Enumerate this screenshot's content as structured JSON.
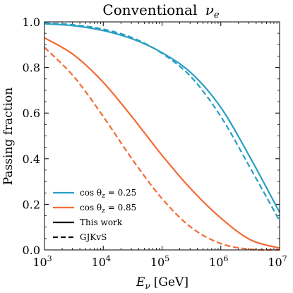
{
  "chart_data": {
    "type": "line",
    "title_main": "Conventional",
    "title_sym": "ν",
    "title_sub": "e",
    "xlabel_sym": "E",
    "xlabel_sub": "ν",
    "xlabel_unit": "[GeV]",
    "ylabel": "Passing fraction",
    "x_scale": "log",
    "xlim": [
      1000,
      10000000
    ],
    "ylim": [
      0.0,
      1.0
    ],
    "x_ticks": [
      {
        "value": 1000,
        "base": "10",
        "exp": "3"
      },
      {
        "value": 10000,
        "base": "10",
        "exp": "4"
      },
      {
        "value": 100000,
        "base": "10",
        "exp": "5"
      },
      {
        "value": 1000000,
        "base": "10",
        "exp": "6"
      },
      {
        "value": 10000000,
        "base": "10",
        "exp": "7"
      }
    ],
    "y_ticks": [
      {
        "value": 0.0,
        "label": "0.0"
      },
      {
        "value": 0.2,
        "label": "0.2"
      },
      {
        "value": 0.4,
        "label": "0.4"
      },
      {
        "value": 0.6,
        "label": "0.6"
      },
      {
        "value": 0.8,
        "label": "0.8"
      },
      {
        "value": 1.0,
        "label": "1.0"
      }
    ],
    "colors": {
      "cos025": "#2a9fc3",
      "cos085": "#f26b35"
    },
    "series": [
      {
        "key": "cos025_thiswork",
        "color": "#2a9fc3",
        "dash": "solid",
        "points": [
          [
            1000,
            0.992
          ],
          [
            3162,
            0.983
          ],
          [
            10000,
            0.962
          ],
          [
            31623,
            0.925
          ],
          [
            100000,
            0.865
          ],
          [
            316228,
            0.775
          ],
          [
            1000000,
            0.625
          ],
          [
            3162278,
            0.405
          ],
          [
            10000000,
            0.165
          ]
        ]
      },
      {
        "key": "cos025_gjkvs",
        "color": "#2a9fc3",
        "dash": "dashed",
        "points": [
          [
            1000,
            0.995
          ],
          [
            3162,
            0.987
          ],
          [
            10000,
            0.968
          ],
          [
            31623,
            0.93
          ],
          [
            100000,
            0.862
          ],
          [
            316228,
            0.757
          ],
          [
            1000000,
            0.585
          ],
          [
            3162278,
            0.36
          ],
          [
            10000000,
            0.128
          ]
        ]
      },
      {
        "key": "cos085_thiswork",
        "color": "#f26b35",
        "dash": "solid",
        "points": [
          [
            1000,
            0.93
          ],
          [
            3162,
            0.855
          ],
          [
            10000,
            0.735
          ],
          [
            31623,
            0.58
          ],
          [
            100000,
            0.415
          ],
          [
            316228,
            0.265
          ],
          [
            1000000,
            0.14
          ],
          [
            3162278,
            0.045
          ],
          [
            10000000,
            0.008
          ]
        ]
      },
      {
        "key": "cos085_gjkvs",
        "color": "#f26b35",
        "dash": "dashed",
        "points": [
          [
            1000,
            0.888
          ],
          [
            3162,
            0.76
          ],
          [
            10000,
            0.585
          ],
          [
            31623,
            0.395
          ],
          [
            100000,
            0.225
          ],
          [
            316228,
            0.098
          ],
          [
            1000000,
            0.028
          ],
          [
            3162278,
            0.003
          ],
          [
            10000000,
            0.0
          ]
        ]
      }
    ],
    "legend": {
      "placement": "lower-left",
      "entries": [
        {
          "sym": "cos θ",
          "sub": "z",
          "rest": " = 0.25",
          "color": "#2a9fc3",
          "dash": "solid"
        },
        {
          "sym": "cos θ",
          "sub": "z",
          "rest": " = 0.85",
          "color": "#f26b35",
          "dash": "solid"
        },
        {
          "label": "This work",
          "color": "#000000",
          "dash": "solid"
        },
        {
          "label": "GJKvS",
          "color": "#000000",
          "dash": "dashed"
        }
      ]
    }
  }
}
